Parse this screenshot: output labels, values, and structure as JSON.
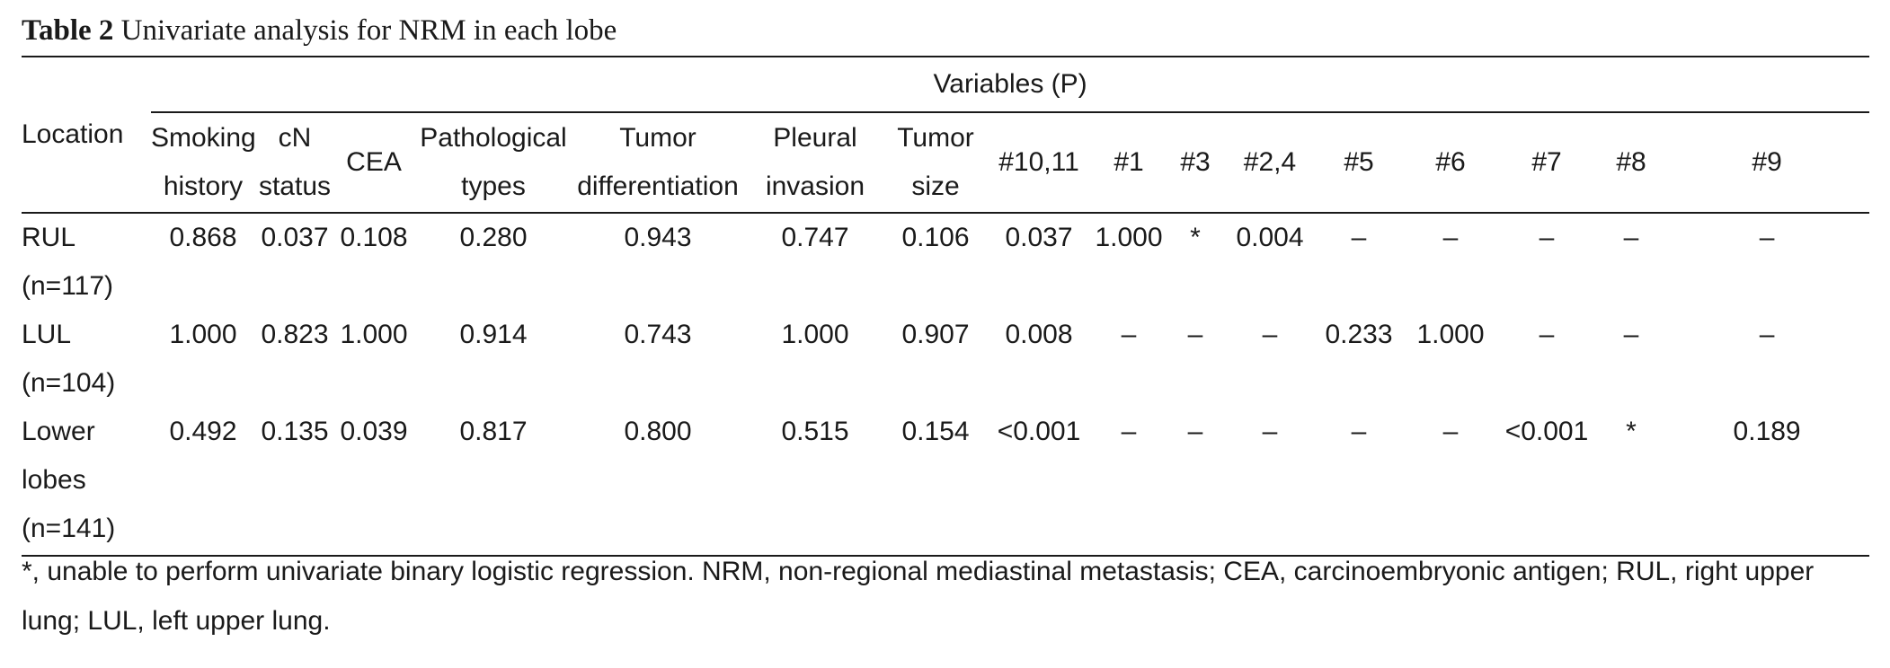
{
  "caption": {
    "label": "Table 2",
    "text": " Univariate analysis for NRM in each lobe"
  },
  "table": {
    "location_header": "Location",
    "group_header": "Variables (P)",
    "columns": [
      "Smoking history",
      "cN status",
      "CEA",
      "Pathological types",
      "Tumor differentiation",
      "Pleural invasion",
      "Tumor size",
      "#10,11",
      "#1",
      "#3",
      "#2,4",
      "#5",
      "#6",
      "#7",
      "#8",
      "#9"
    ],
    "rows": [
      {
        "location": "RUL (n=117)",
        "values": [
          "0.868",
          "0.037",
          "0.108",
          "0.280",
          "0.943",
          "0.747",
          "0.106",
          "0.037",
          "1.000",
          "*",
          "0.004",
          "–",
          "–",
          "–",
          "–",
          "–"
        ]
      },
      {
        "location": "LUL (n=104)",
        "values": [
          "1.000",
          "0.823",
          "1.000",
          "0.914",
          "0.743",
          "1.000",
          "0.907",
          "0.008",
          "–",
          "–",
          "–",
          "0.233",
          "1.000",
          "–",
          "–",
          "–"
        ]
      },
      {
        "location": "Lower lobes (n=141)",
        "values": [
          "0.492",
          "0.135",
          "0.039",
          "0.817",
          "0.800",
          "0.515",
          "0.154",
          "<0.001",
          "–",
          "–",
          "–",
          "–",
          "–",
          "<0.001",
          "*",
          "0.189"
        ]
      }
    ]
  },
  "footnote": "*, unable to perform univariate binary logistic regression. NRM, non-regional mediastinal metastasis; CEA, carcinoembryonic antigen; RUL, right upper lung; LUL, left upper lung."
}
